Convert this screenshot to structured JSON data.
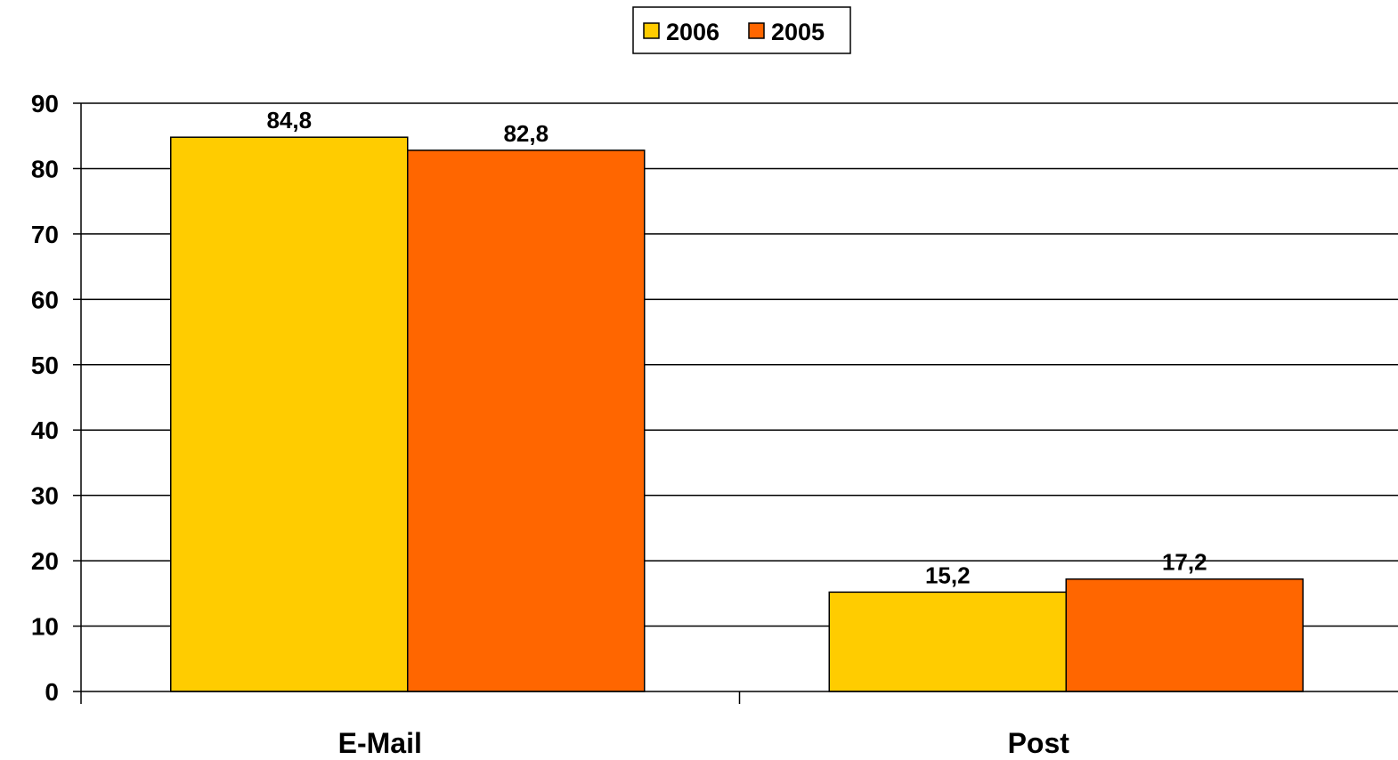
{
  "chart_data": {
    "type": "bar",
    "categories": [
      "E-Mail",
      "Post"
    ],
    "series": [
      {
        "name": "2006",
        "values": [
          84.8,
          15.2
        ],
        "labels": [
          "84,8",
          "15,2"
        ],
        "color": "#FFCC00"
      },
      {
        "name": "2005",
        "values": [
          82.8,
          17.2
        ],
        "labels": [
          "82,8",
          "17,2"
        ],
        "color": "#FF6600"
      }
    ],
    "ylim": [
      0,
      90
    ],
    "yticks": [
      0,
      10,
      20,
      30,
      40,
      50,
      60,
      70,
      80,
      90
    ],
    "grid": true,
    "legend": "top-center",
    "title": "",
    "xlabel": "",
    "ylabel": ""
  }
}
